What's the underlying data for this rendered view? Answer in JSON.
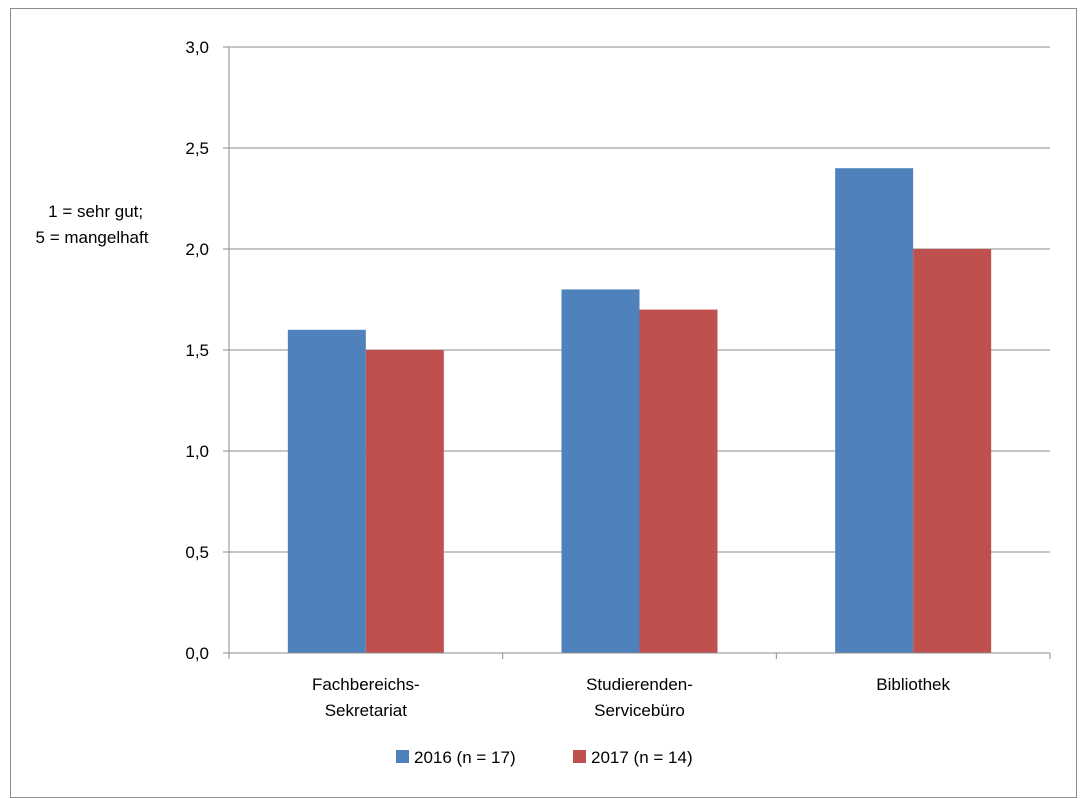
{
  "chart_data": {
    "type": "bar",
    "categories": [
      [
        "Fachbereichs-",
        "Sekretariat"
      ],
      [
        "Studierenden-",
        "Servicebüro"
      ],
      [
        "Bibliothek"
      ]
    ],
    "series": [
      {
        "name": "2016 (n = 17)",
        "color": "#4f81bd",
        "values": [
          1.6,
          1.8,
          2.4
        ]
      },
      {
        "name": "2017 (n = 14)",
        "color": "#c0504d",
        "values": [
          1.5,
          1.7,
          2.0
        ]
      }
    ],
    "ylabel": [
      "1 = sehr gut;",
      "5 = mangelhaft"
    ],
    "ylim": [
      0,
      3.0
    ],
    "yticks": [
      "0,0",
      "0,5",
      "1,0",
      "1,5",
      "2,0",
      "2,5",
      "3,0"
    ],
    "grid": true,
    "legend": "bottom"
  }
}
